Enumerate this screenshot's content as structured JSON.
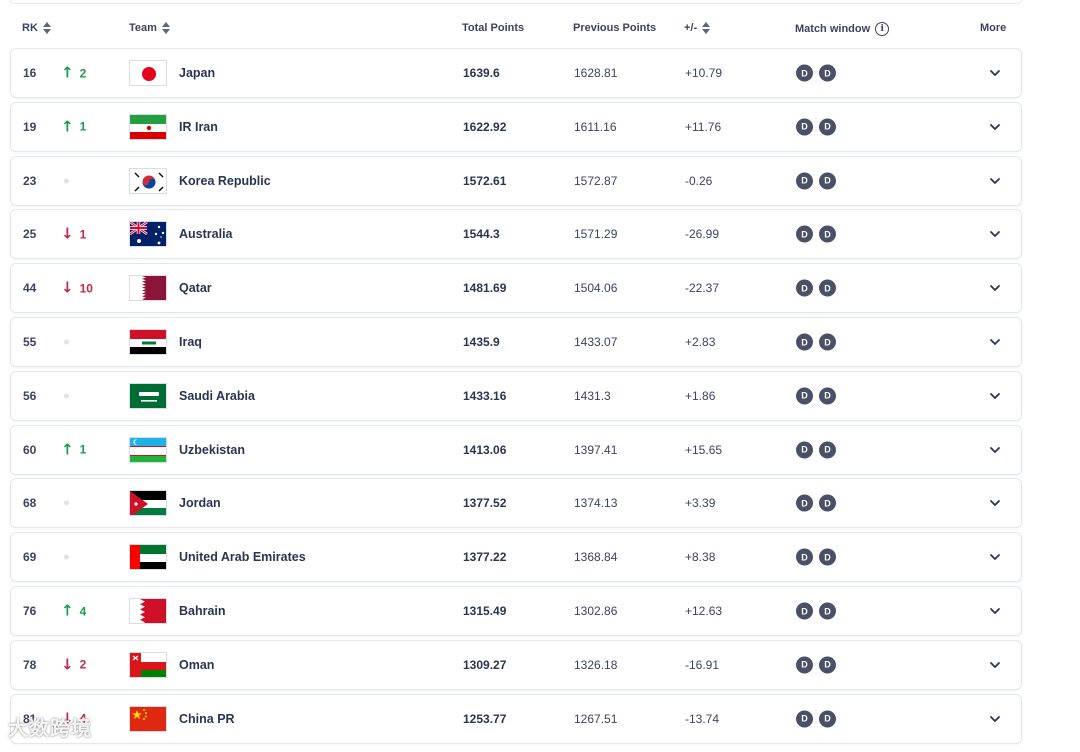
{
  "headers": {
    "rk": "RK",
    "team": "Team",
    "total_points": "Total Points",
    "previous_points": "Previous Points",
    "diff": "+/-",
    "match_window": "Match window",
    "more": "More"
  },
  "badge_label": "D",
  "rows": [
    {
      "rank": "16",
      "move": "up",
      "change": "2",
      "team": "Japan",
      "flag": "japan",
      "total": "1639.6",
      "previous": "1628.81",
      "diff": "+10.79"
    },
    {
      "rank": "19",
      "move": "up",
      "change": "1",
      "team": "IR Iran",
      "flag": "iran",
      "total": "1622.92",
      "previous": "1611.16",
      "diff": "+11.76"
    },
    {
      "rank": "23",
      "move": "same",
      "change": "",
      "team": "Korea Republic",
      "flag": "korea",
      "total": "1572.61",
      "previous": "1572.87",
      "diff": "-0.26"
    },
    {
      "rank": "25",
      "move": "down",
      "change": "1",
      "team": "Australia",
      "flag": "australia",
      "total": "1544.3",
      "previous": "1571.29",
      "diff": "-26.99"
    },
    {
      "rank": "44",
      "move": "down",
      "change": "10",
      "team": "Qatar",
      "flag": "qatar",
      "total": "1481.69",
      "previous": "1504.06",
      "diff": "-22.37"
    },
    {
      "rank": "55",
      "move": "same",
      "change": "",
      "team": "Iraq",
      "flag": "iraq",
      "total": "1435.9",
      "previous": "1433.07",
      "diff": "+2.83"
    },
    {
      "rank": "56",
      "move": "same",
      "change": "",
      "team": "Saudi Arabia",
      "flag": "saudi",
      "total": "1433.16",
      "previous": "1431.3",
      "diff": "+1.86"
    },
    {
      "rank": "60",
      "move": "up",
      "change": "1",
      "team": "Uzbekistan",
      "flag": "uzbekistan",
      "total": "1413.06",
      "previous": "1397.41",
      "diff": "+15.65"
    },
    {
      "rank": "68",
      "move": "same",
      "change": "",
      "team": "Jordan",
      "flag": "jordan",
      "total": "1377.52",
      "previous": "1374.13",
      "diff": "+3.39"
    },
    {
      "rank": "69",
      "move": "same",
      "change": "",
      "team": "United Arab Emirates",
      "flag": "uae",
      "total": "1377.22",
      "previous": "1368.84",
      "diff": "+8.38"
    },
    {
      "rank": "76",
      "move": "up",
      "change": "4",
      "team": "Bahrain",
      "flag": "bahrain",
      "total": "1315.49",
      "previous": "1302.86",
      "diff": "+12.63"
    },
    {
      "rank": "78",
      "move": "down",
      "change": "2",
      "team": "Oman",
      "flag": "oman",
      "total": "1309.27",
      "previous": "1326.18",
      "diff": "-16.91"
    },
    {
      "rank": "81",
      "move": "down",
      "change": "4",
      "team": "China PR",
      "flag": "china",
      "total": "1253.77",
      "previous": "1267.51",
      "diff": "-13.74"
    }
  ],
  "watermark": "大数跨境",
  "colors": {
    "up": "#1a9a4b",
    "down": "#c2294b",
    "badge": "#4a5066"
  }
}
